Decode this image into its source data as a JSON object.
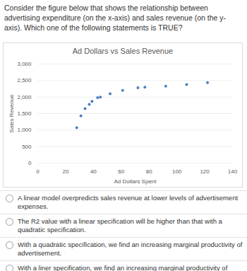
{
  "question": "Consider the figure below that shows the relationship between advertising expenditure (on the x-axis) and sales revenue (on the y-axis). Which one of the following statements is TRUE?",
  "chart_data": {
    "type": "scatter",
    "title": "Ad Dollars vs Sales Revenue",
    "x_label": "Ad Dollars Spent",
    "y_label": "Sales Revenue",
    "x": [
      28,
      31,
      34,
      37,
      39,
      43,
      45,
      52,
      61,
      72,
      77,
      92,
      107,
      122
    ],
    "values": [
      1070,
      1430,
      1650,
      1780,
      1870,
      1980,
      2000,
      2100,
      2200,
      2280,
      2300,
      2330,
      2380,
      2440
    ],
    "color": "#4a7fc1",
    "marker": "circle",
    "xlim": [
      0,
      140
    ],
    "xticks": [
      0,
      20,
      40,
      60,
      80,
      100,
      120,
      140
    ],
    "ylim": [
      0,
      3000
    ],
    "yticks": [
      0,
      500,
      1000,
      1500,
      2000,
      2500,
      3000
    ],
    "grid": true
  },
  "options": [
    "A linear model overpredicts sales revenue at lower levels of advertisement expenses.",
    "The R2 value with a linear specification will be higher than that with a quadratic specification.",
    "With a quadratic specification, we find an increasing marginal productivity of advertisement.",
    "With a liner specification, we find an increasing marginal productivity of advertisement."
  ]
}
